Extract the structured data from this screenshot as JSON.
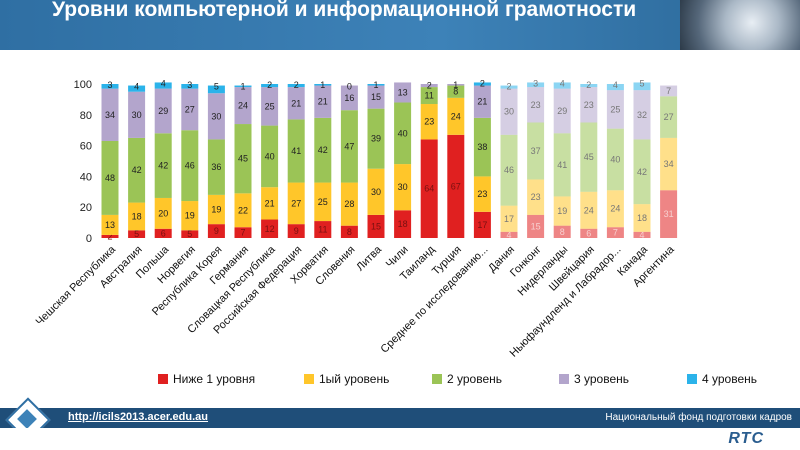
{
  "title": "Уровни компьютерной и информационной грамотности",
  "footer": {
    "url": "http://icils2013.acer.edu.au",
    "org": "Национальный  фонд подготовки кадров",
    "logo_text": "RTC"
  },
  "colors": {
    "header": "#3d82b8",
    "footer": "#1f4e79",
    "below1": "#e02020",
    "level1": "#ffc62a",
    "level2": "#9bc456",
    "level3": "#b3a5cc",
    "level4": "#2bb3ea"
  },
  "chart_data": {
    "type": "bar",
    "stacked": true,
    "ylim": [
      0,
      100
    ],
    "yticks": [
      0,
      20,
      40,
      60,
      80,
      100
    ],
    "grid": false,
    "legend_position": "bottom",
    "categories": [
      "Чешская Республика",
      "Австралия",
      "Польша",
      "Норвегия",
      "Республика Корея",
      "Германия",
      "Словацкая Республика",
      "Российская Федерация",
      "Хорватия",
      "Словения",
      "Литва",
      "Чили",
      "Таиланд",
      "Турция",
      "Среднее по исследованию...",
      "Дания",
      "Гонконг",
      "Нидерланды",
      "Швейцария",
      "Ньюфаундленд и Лабрадор...",
      "Канада",
      "Аргентина"
    ],
    "faded_from_index": 15,
    "series": [
      {
        "name": "Ниже 1 уровня",
        "color": "#e02020",
        "values": [
          2,
          5,
          6,
          5,
          9,
          7,
          12,
          9,
          11,
          8,
          15,
          18,
          64,
          67,
          17,
          4,
          15,
          8,
          6,
          7,
          4,
          31
        ]
      },
      {
        "name": "1ый уровень",
        "color": "#ffc62a",
        "values": [
          13,
          18,
          20,
          19,
          19,
          22,
          21,
          27,
          25,
          28,
          30,
          30,
          23,
          24,
          23,
          17,
          23,
          19,
          24,
          24,
          18,
          34
        ]
      },
      {
        "name": "2 уровень",
        "color": "#9bc456",
        "values": [
          48,
          42,
          42,
          46,
          36,
          45,
          40,
          41,
          42,
          47,
          39,
          40,
          11,
          8,
          38,
          46,
          37,
          41,
          45,
          40,
          42,
          27
        ]
      },
      {
        "name": "3 уровень",
        "color": "#b3a5cc",
        "values": [
          34,
          30,
          29,
          27,
          30,
          24,
          25,
          21,
          21,
          16,
          15,
          13,
          2,
          1,
          21,
          30,
          23,
          29,
          23,
          25,
          32,
          7
        ]
      },
      {
        "name": "4 уровень",
        "color": "#2bb3ea",
        "values": [
          3,
          4,
          4,
          3,
          5,
          1,
          2,
          2,
          1,
          0,
          1,
          0,
          0,
          0,
          2,
          2,
          3,
          4,
          2,
          4,
          5,
          0
        ]
      }
    ],
    "labels": [
      [
        "2",
        "5",
        "6",
        "5",
        "9",
        "7",
        "12",
        "9",
        "11",
        "8",
        "15",
        "18",
        "64",
        "67",
        "17",
        "4",
        "15",
        "8",
        "6",
        "7",
        "4",
        "31"
      ],
      [
        "13",
        "18",
        "20",
        "19",
        "19",
        "22",
        "21",
        "27",
        "25",
        "28",
        "30",
        "30",
        "23",
        "24",
        "23",
        "17",
        "23",
        "19",
        "24",
        "24",
        "18",
        "34"
      ],
      [
        "48",
        "42",
        "42",
        "46",
        "36",
        "45",
        "40",
        "41",
        "42",
        "47",
        "39",
        "40",
        "11",
        "8",
        "38",
        "46",
        "37",
        "41",
        "45",
        "40",
        "42",
        "27"
      ],
      [
        "34",
        "30",
        "29",
        "27",
        "30",
        "24",
        "25",
        "21",
        "21",
        "16",
        "15",
        "13",
        "2",
        "1",
        "21",
        "30",
        "23",
        "29",
        "23",
        "25",
        "32",
        "7"
      ],
      [
        "3",
        "4",
        "4",
        "3",
        "5",
        "1",
        "2",
        "2",
        "1",
        "0",
        "1",
        "",
        "",
        "",
        "2",
        "2",
        "3",
        "4",
        "2",
        "4",
        "5",
        ""
      ]
    ]
  }
}
